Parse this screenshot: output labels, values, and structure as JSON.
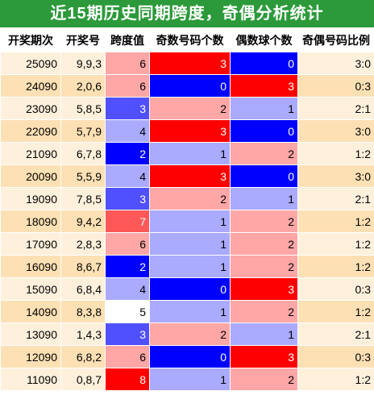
{
  "title": "近15期历史同期跨度，奇偶分析统计",
  "headers": [
    "开奖期次",
    "开奖号",
    "跨度值",
    "奇数号码个数",
    "偶数球个数",
    "奇偶号码比例"
  ],
  "colors": {
    "title_bg": "#2c9a3a",
    "row_odd": "#fff0dc",
    "row_even": "#fde0b4",
    "red": "#ff0000",
    "blue": "#0000ff",
    "pink": "#ffa6a6",
    "light_blue": "#aaaaff",
    "mid_blue": "#5050ff",
    "coral": "#ff5858",
    "white": "#ffffff"
  },
  "rows": [
    {
      "period": "25090",
      "numbers": "9,9,3",
      "span": "6",
      "odd": "3",
      "even": "0",
      "ratio": "3:0"
    },
    {
      "period": "24090",
      "numbers": "2,0,6",
      "span": "6",
      "odd": "0",
      "even": "3",
      "ratio": "0:3"
    },
    {
      "period": "23090",
      "numbers": "5,8,5",
      "span": "3",
      "odd": "2",
      "even": "1",
      "ratio": "2:1"
    },
    {
      "period": "22090",
      "numbers": "5,7,9",
      "span": "4",
      "odd": "3",
      "even": "0",
      "ratio": "3:0"
    },
    {
      "period": "21090",
      "numbers": "6,7,8",
      "span": "2",
      "odd": "1",
      "even": "2",
      "ratio": "1:2"
    },
    {
      "period": "20090",
      "numbers": "5,5,9",
      "span": "4",
      "odd": "3",
      "even": "0",
      "ratio": "3:0"
    },
    {
      "period": "19090",
      "numbers": "7,8,5",
      "span": "3",
      "odd": "2",
      "even": "1",
      "ratio": "2:1"
    },
    {
      "period": "18090",
      "numbers": "9,4,2",
      "span": "7",
      "odd": "1",
      "even": "2",
      "ratio": "1:2"
    },
    {
      "period": "17090",
      "numbers": "2,8,3",
      "span": "6",
      "odd": "1",
      "even": "2",
      "ratio": "1:2"
    },
    {
      "period": "16090",
      "numbers": "8,6,7",
      "span": "2",
      "odd": "1",
      "even": "2",
      "ratio": "1:2"
    },
    {
      "period": "15090",
      "numbers": "6,8,4",
      "span": "4",
      "odd": "0",
      "even": "3",
      "ratio": "0:3"
    },
    {
      "period": "14090",
      "numbers": "8,3,8",
      "span": "5",
      "odd": "1",
      "even": "2",
      "ratio": "1:2"
    },
    {
      "period": "13090",
      "numbers": "1,4,3",
      "span": "3",
      "odd": "2",
      "even": "1",
      "ratio": "2:1"
    },
    {
      "period": "12090",
      "numbers": "6,8,2",
      "span": "6",
      "odd": "0",
      "even": "3",
      "ratio": "0:3"
    },
    {
      "period": "11090",
      "numbers": "0,8,7",
      "span": "8",
      "odd": "1",
      "even": "2",
      "ratio": "1:2"
    }
  ]
}
